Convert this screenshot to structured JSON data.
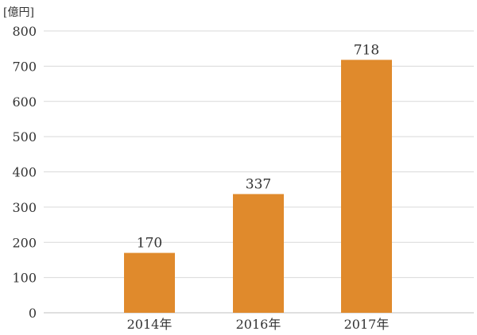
{
  "chart_data": {
    "type": "bar",
    "unit_label": "[億円]",
    "categories": [
      "2014年",
      "2016年",
      "2017年"
    ],
    "values": [
      170,
      337,
      718
    ],
    "data_labels": [
      "170",
      "337",
      "718"
    ],
    "ylim": [
      0,
      800
    ],
    "yticks": [
      0,
      100,
      200,
      300,
      400,
      500,
      600,
      700,
      800
    ],
    "grid": true,
    "legend": "none",
    "bar_color": "#e08a2c",
    "grid_color": "#d9d9d9"
  }
}
